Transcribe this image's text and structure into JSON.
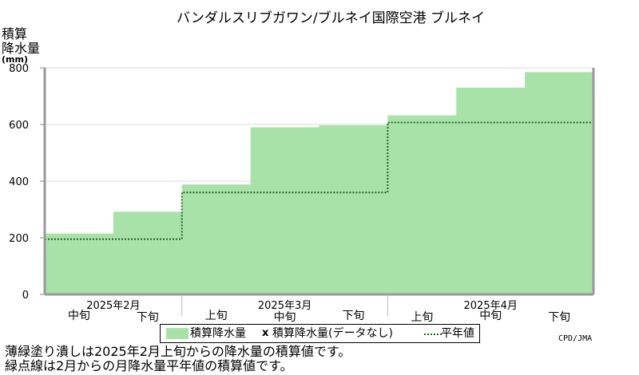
{
  "chart_data": {
    "type": "area",
    "title": "バンダルスリブガワン/ブルネイ国際空港 ブルネイ",
    "ylabel_lines": [
      "積算",
      "降水量",
      "(mm)"
    ],
    "ylim": [
      0,
      800
    ],
    "yticks": [
      0,
      200,
      400,
      600,
      800
    ],
    "grid": true,
    "periods": [
      "中旬",
      "下旬",
      "上旬",
      "中旬",
      "下旬",
      "上旬",
      "中旬",
      "下旬"
    ],
    "months": [
      {
        "label": "2025年2月",
        "start_index": 0,
        "count": 2
      },
      {
        "label": "2025年3月",
        "start_index": 2,
        "count": 3
      },
      {
        "label": "2025年4月",
        "start_index": 5,
        "count": 3
      }
    ],
    "series": [
      {
        "name": "積算降水量",
        "style": "filled-steps",
        "color": "#a9e2a9",
        "values": [
          215,
          292,
          388,
          590,
          597,
          632,
          730,
          785
        ]
      },
      {
        "name": "平年値",
        "style": "dotted-steps",
        "color": "#226622",
        "values": [
          195,
          195,
          360,
          360,
          360,
          607,
          607,
          607
        ]
      }
    ],
    "legend": {
      "item1": "積算降水量",
      "item2_mark": "x",
      "item2": "積算降水量(データなし)",
      "item3": "平年値"
    }
  },
  "credit": "CPD/JMA",
  "notes": [
    "薄緑塗り潰しは2025年2月上旬からの降水量の積算値です。",
    "緑点線は2月からの月降水量平年値の積算値です。"
  ]
}
